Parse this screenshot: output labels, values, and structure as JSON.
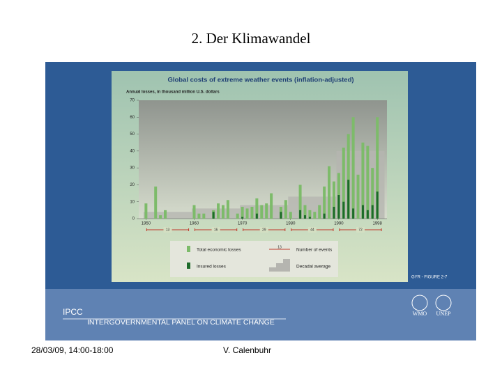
{
  "slide": {
    "title": "2. Der Klimawandel",
    "footer_date": "28/03/09, 14:00-18:00",
    "footer_author": "V. Calenbuhr",
    "band": {
      "acronym": "IPCC",
      "name": "INTERGOVERNMENTAL PANEL ON CLIMATE CHANGE",
      "logos": [
        "WMO",
        "UNEP"
      ]
    }
  },
  "chart_data": {
    "type": "bar",
    "title": "Global costs of extreme weather events (inflation-adjusted)",
    "y_label": "Annual losses, in thousand million U.S. dollars",
    "source": "GYR - FIGURE 2-7",
    "x": [
      1950,
      1951,
      1952,
      1953,
      1954,
      1955,
      1956,
      1957,
      1958,
      1959,
      1960,
      1961,
      1962,
      1963,
      1964,
      1965,
      1966,
      1967,
      1968,
      1969,
      1970,
      1971,
      1972,
      1973,
      1974,
      1975,
      1976,
      1977,
      1978,
      1979,
      1980,
      1981,
      1982,
      1983,
      1984,
      1985,
      1986,
      1987,
      1988,
      1989,
      1990,
      1991,
      1992,
      1993,
      1994,
      1995,
      1996,
      1997,
      1998
    ],
    "series": [
      {
        "name": "Total economic losses",
        "color": "#7dbb6a",
        "values": [
          9,
          null,
          19,
          2,
          5,
          null,
          null,
          null,
          null,
          null,
          8,
          3,
          3,
          null,
          5,
          9,
          8,
          11,
          null,
          3,
          7,
          6,
          7,
          12,
          8,
          9,
          15,
          null,
          7,
          11,
          4,
          null,
          20,
          8,
          5,
          4,
          8,
          19,
          31,
          22,
          27,
          42,
          50,
          60,
          26,
          45,
          43,
          30,
          60
        ]
      },
      {
        "name": "Insured losses",
        "color": "#1d6b2a",
        "values": [
          null,
          null,
          null,
          null,
          null,
          null,
          null,
          null,
          null,
          null,
          null,
          null,
          null,
          null,
          4,
          null,
          null,
          null,
          null,
          null,
          1,
          null,
          null,
          3,
          null,
          null,
          null,
          null,
          4,
          null,
          null,
          null,
          5,
          2,
          1,
          null,
          null,
          3,
          null,
          7,
          14,
          10,
          23,
          6,
          null,
          8,
          5,
          8,
          16
        ]
      }
    ],
    "decadal_average": {
      "name": "Decadal average",
      "color": "#b5b5b0",
      "decades": [
        1950,
        1960,
        1970,
        1980,
        1990
      ],
      "values": [
        4,
        6,
        8,
        13,
        40
      ]
    },
    "events": {
      "name": "Number of events",
      "color": "#c0392b",
      "values": [
        13,
        16,
        29,
        44,
        72
      ],
      "legend_sample": 13
    },
    "xlim": [
      1948.5,
      2000
    ],
    "xticks": [
      1950,
      1960,
      1970,
      1980,
      1990,
      1998
    ],
    "ylim": [
      0,
      70
    ],
    "yticks": [
      0,
      10,
      20,
      30,
      40,
      50,
      60,
      70
    ]
  }
}
